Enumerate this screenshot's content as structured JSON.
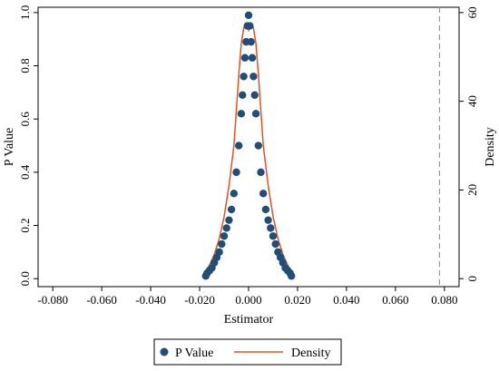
{
  "chart_data": {
    "type": "scatter",
    "title": "",
    "xlabel": "Estimator",
    "ylabel": "P Value",
    "y2label": "Density",
    "xlim": [
      -0.086,
      0.086
    ],
    "ylim": [
      -0.03,
      1.02
    ],
    "y2lim": [
      -1.8,
      61.2
    ],
    "x_ticks": [
      -0.08,
      -0.06,
      -0.04,
      -0.02,
      0.0,
      0.02,
      0.04,
      0.06,
      0.08
    ],
    "x_tick_labels": [
      "-0.080",
      "-0.060",
      "-0.040",
      "-0.020",
      "0.000",
      "0.020",
      "0.040",
      "0.060",
      "0.080"
    ],
    "y_ticks": [
      0,
      0.2,
      0.4,
      0.6,
      0.8,
      1.0
    ],
    "y_tick_labels": [
      "0.0",
      "0.2",
      "0.4",
      "0.6",
      "0.8",
      "1.0"
    ],
    "y2_ticks": [
      0,
      20,
      40,
      60
    ],
    "y2_tick_labels": [
      "0",
      "20",
      "40",
      "60"
    ],
    "reference_line_x": 0.078,
    "grid": false,
    "legend_position": "bottom",
    "colors": {
      "p_value": "#1f4e79",
      "density": "#e8501e",
      "reference": "#999999"
    },
    "series": [
      {
        "name": "P Value",
        "kind": "scatter",
        "axis": "left",
        "x": [
          -0.0175,
          -0.017,
          -0.016,
          -0.015,
          -0.014,
          -0.013,
          -0.012,
          -0.011,
          -0.01,
          -0.009,
          -0.008,
          -0.007,
          -0.006,
          -0.005,
          -0.004,
          -0.003,
          -0.0025,
          -0.002,
          -0.0015,
          -0.001,
          -0.0005,
          0.0,
          0.0005,
          0.001,
          0.0015,
          0.002,
          0.0025,
          0.003,
          0.004,
          0.005,
          0.006,
          0.007,
          0.008,
          0.009,
          0.01,
          0.011,
          0.012,
          0.013,
          0.014,
          0.015,
          0.016,
          0.017,
          0.0175
        ],
        "y": [
          0.01,
          0.02,
          0.03,
          0.04,
          0.06,
          0.08,
          0.1,
          0.13,
          0.16,
          0.19,
          0.22,
          0.26,
          0.32,
          0.4,
          0.5,
          0.62,
          0.69,
          0.76,
          0.83,
          0.89,
          0.95,
          0.99,
          0.95,
          0.89,
          0.83,
          0.76,
          0.69,
          0.62,
          0.5,
          0.4,
          0.32,
          0.26,
          0.22,
          0.19,
          0.16,
          0.13,
          0.1,
          0.08,
          0.06,
          0.04,
          0.03,
          0.02,
          0.01
        ]
      },
      {
        "name": "Density",
        "kind": "line",
        "axis": "right",
        "x": [
          -0.018,
          -0.016,
          -0.014,
          -0.012,
          -0.01,
          -0.008,
          -0.006,
          -0.005,
          -0.004,
          -0.003,
          -0.002,
          -0.001,
          0.0,
          0.001,
          0.002,
          0.003,
          0.004,
          0.005,
          0.006,
          0.008,
          0.01,
          0.012,
          0.014,
          0.016,
          0.018
        ],
        "y": [
          1.5,
          3.0,
          5.5,
          9.0,
          14.0,
          21.0,
          30.0,
          38.0,
          46.0,
          53.0,
          56.5,
          57.5,
          56.0,
          57.5,
          56.5,
          53.0,
          46.0,
          38.0,
          30.0,
          21.0,
          14.0,
          9.0,
          5.5,
          3.0,
          1.5
        ]
      }
    ]
  }
}
